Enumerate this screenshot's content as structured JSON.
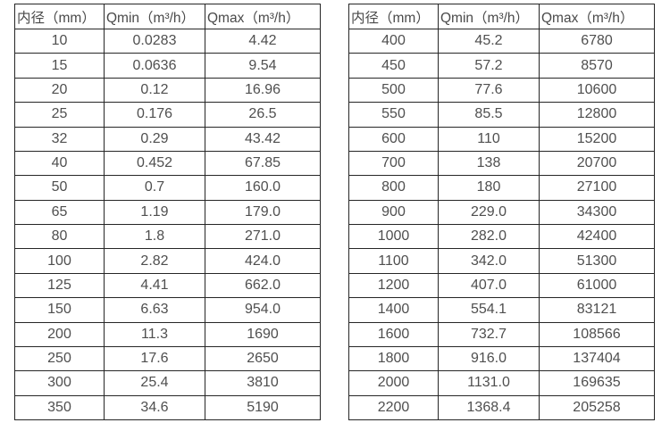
{
  "page": {
    "background": "#ffffff"
  },
  "colors": {
    "border": "#262626",
    "text": "#4f4f4f"
  },
  "chart_data": [
    {
      "type": "table",
      "title": "",
      "columns": [
        "内径（mm）",
        "Qmin（m³/h）",
        "Qmax（m³/h）"
      ],
      "rows": [
        [
          "10",
          "0.0283",
          "4.42"
        ],
        [
          "15",
          "0.0636",
          "9.54"
        ],
        [
          "20",
          "0.12",
          "16.96"
        ],
        [
          "25",
          "0.176",
          "26.5"
        ],
        [
          "32",
          "0.29",
          "43.42"
        ],
        [
          "40",
          "0.452",
          "67.85"
        ],
        [
          "50",
          "0.7",
          "160.0"
        ],
        [
          "65",
          "1.19",
          "179.0"
        ],
        [
          "80",
          "1.8",
          "271.0"
        ],
        [
          "100",
          "2.82",
          "424.0"
        ],
        [
          "125",
          "4.41",
          "662.0"
        ],
        [
          "150",
          "6.63",
          "954.0"
        ],
        [
          "200",
          "11.3",
          "1690"
        ],
        [
          "250",
          "17.6",
          "2650"
        ],
        [
          "300",
          "25.4",
          "3810"
        ],
        [
          "350",
          "34.6",
          "5190"
        ]
      ]
    },
    {
      "type": "table",
      "title": "",
      "columns": [
        "内径（mm）",
        "Qmin（m³/h）",
        "Qmax（m³/h）"
      ],
      "rows": [
        [
          "400",
          "45.2",
          "6780"
        ],
        [
          "450",
          "57.2",
          "8570"
        ],
        [
          "500",
          "77.6",
          "10600"
        ],
        [
          "550",
          "85.5",
          "12800"
        ],
        [
          "600",
          "110",
          "15200"
        ],
        [
          "700",
          "138",
          "20700"
        ],
        [
          "800",
          "180",
          "27100"
        ],
        [
          "900",
          "229.0",
          "34300"
        ],
        [
          "1000",
          "282.0",
          "42400"
        ],
        [
          "1100",
          "342.0",
          "51300"
        ],
        [
          "1200",
          "407.0",
          "61000"
        ],
        [
          "1400",
          "554.1",
          "83121"
        ],
        [
          "1600",
          "732.7",
          "108566"
        ],
        [
          "1800",
          "916.0",
          "137404"
        ],
        [
          "2000",
          "1131.0",
          "169635"
        ],
        [
          "2200",
          "1368.4",
          "205258"
        ]
      ]
    }
  ]
}
